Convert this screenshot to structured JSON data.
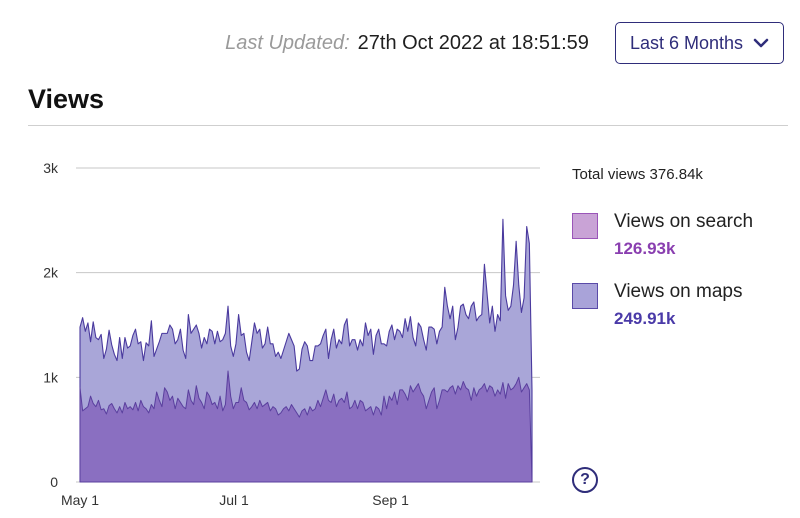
{
  "header": {
    "updated_label": "Last Updated:",
    "updated_value": "27th Oct 2022 at 18:51:59",
    "range_button": "Last 6 Months"
  },
  "section_title": "Views",
  "legend": {
    "total_label": "Total views",
    "total_value": "376.84k",
    "items": [
      {
        "name": "Views on search",
        "value": "126.93k",
        "color": "#c9a3d6",
        "border": "#9a55b8",
        "value_color": "#8a3fb0"
      },
      {
        "name": "Views on maps",
        "value": "249.91k",
        "color": "#a9a3d9",
        "border": "#5a4aa8",
        "value_color": "#4a3aa8"
      }
    ]
  },
  "help_label": "?",
  "colors": {
    "maps_fill": "#a9a6d8",
    "search_fill": "#8a6fc1",
    "line": "#4a3a9e",
    "grid": "#c7c7c7"
  },
  "chart_data": {
    "type": "area",
    "stacked": true,
    "x_start": "2022-05-01",
    "x_end": "2022-10-27",
    "x_ticks": [
      "May 1",
      "Jul 1",
      "Sep 1"
    ],
    "x_tick_dates": [
      "2022-05-01",
      "2022-07-01",
      "2022-09-01"
    ],
    "y_ticks": [
      "0",
      "1k",
      "2k",
      "3k"
    ],
    "y_tick_values": [
      0,
      1000,
      2000,
      3000
    ],
    "ylim": [
      0,
      3000
    ],
    "grid": true,
    "series": [
      {
        "name": "Views on search",
        "values": [
          900,
          680,
          700,
          720,
          820,
          750,
          720,
          780,
          690,
          700,
          650,
          730,
          750,
          700,
          660,
          720,
          660,
          760,
          700,
          720,
          690,
          760,
          680,
          780,
          720,
          700,
          660,
          740,
          700,
          860,
          780,
          720,
          900,
          860,
          780,
          820,
          700,
          800,
          760,
          720,
          700,
          880,
          780,
          740,
          920,
          800,
          760,
          700,
          860,
          820,
          740,
          760,
          700,
          820,
          680,
          740,
          1060,
          820,
          700,
          760,
          760,
          900,
          780,
          760,
          690,
          720,
          760,
          700,
          780,
          720,
          740,
          760,
          680,
          720,
          700,
          640,
          660,
          700,
          720,
          680,
          740,
          700,
          660,
          620,
          680,
          700,
          640,
          720,
          680,
          700,
          780,
          720,
          800,
          880,
          780,
          760,
          840,
          720,
          780,
          800,
          760,
          860,
          700,
          720,
          780,
          700,
          780,
          760,
          680,
          700,
          720,
          640,
          720,
          700,
          640,
          820,
          700,
          820,
          780,
          860,
          740,
          880,
          880,
          840,
          780,
          920,
          860,
          900,
          940,
          860,
          820,
          700,
          780,
          860,
          900,
          700,
          780,
          880,
          880,
          860,
          900,
          920,
          840,
          920,
          880,
          960,
          900,
          880,
          780,
          900,
          820,
          880,
          900,
          940,
          860,
          920,
          900,
          820,
          880,
          840,
          950,
          800,
          940,
          880,
          900,
          940,
          1000,
          860,
          900,
          940,
          880,
          0
        ]
      },
      {
        "name": "Views on maps",
        "values": [
          580,
          890,
          740,
          800,
          520,
          780,
          660,
          580,
          720,
          480,
          620,
          720,
          560,
          520,
          500,
          660,
          520,
          620,
          580,
          580,
          710,
          700,
          640,
          560,
          440,
          630,
          640,
          800,
          500,
          410,
          560,
          700,
          520,
          560,
          720,
          640,
          620,
          560,
          700,
          540,
          480,
          720,
          640,
          720,
          580,
          620,
          520,
          680,
          460,
          640,
          700,
          560,
          740,
          520,
          680,
          680,
          620,
          480,
          500,
          560,
          840,
          500,
          640,
          480,
          470,
          620,
          760,
          720,
          680,
          560,
          580,
          720,
          640,
          600,
          500,
          600,
          520,
          560,
          620,
          740,
          620,
          600,
          400,
          460,
          590,
          640,
          660,
          440,
          480,
          600,
          520,
          600,
          600,
          580,
          400,
          600,
          620,
          560,
          580,
          520,
          740,
          700,
          600,
          640,
          580,
          560,
          580,
          540,
          840,
          700,
          740,
          580,
          680,
          760,
          680,
          500,
          600,
          620,
          720,
          500,
          720,
          560,
          500,
          720,
          660,
          660,
          520,
          400,
          580,
          620,
          540,
          560,
          700,
          620,
          560,
          620,
          660,
          600,
          980,
          820,
          660,
          760,
          520,
          560,
          800,
          740,
          700,
          680,
          900,
          820,
          720,
          700,
          700,
          1140,
          940,
          600,
          780,
          620,
          720,
          700,
          1560,
          980,
          700,
          800,
          980,
          1360,
          880,
          760,
          860,
          1500,
          1400,
          880,
          700,
          700,
          800,
          1440,
          1000,
          840,
          780,
          0
        ]
      }
    ]
  }
}
